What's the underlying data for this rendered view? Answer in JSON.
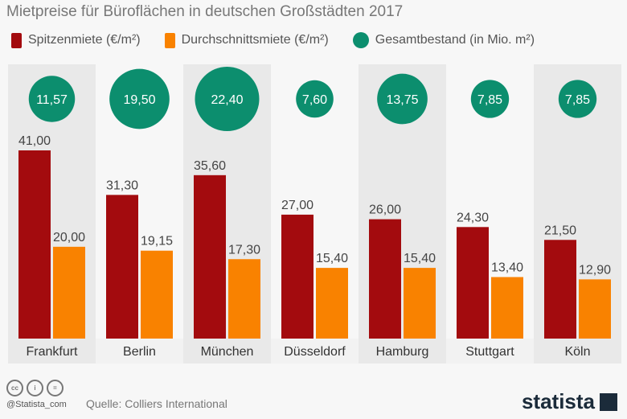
{
  "title": "Mietpreise für Büroflächen in deutschen Großstädten 2017",
  "legend": [
    {
      "label": "Spitzenmiete (€/m²)",
      "color": "#a30b0e"
    },
    {
      "label": "Durchschnittsmiete (€/m²)",
      "color": "#f98200"
    },
    {
      "label": "Gesamtbestand (in Mio. m²)",
      "color": "#0c8e6e"
    }
  ],
  "chart_data": {
    "type": "bar",
    "title": "Mietpreise für Büroflächen in deutschen Großstädten 2017",
    "categories": [
      "Frankfurt",
      "Berlin",
      "München",
      "Düsseldorf",
      "Hamburg",
      "Stuttgart",
      "Köln"
    ],
    "series": [
      {
        "name": "Spitzenmiete (€/m²)",
        "values": [
          41.0,
          31.3,
          35.6,
          27.0,
          26.0,
          24.3,
          21.5
        ],
        "labels": [
          "41,00",
          "31,30",
          "35,60",
          "27,00",
          "26,00",
          "24,30",
          "21,50"
        ]
      },
      {
        "name": "Durchschnittsmiete (€/m²)",
        "values": [
          20.0,
          19.15,
          17.3,
          15.4,
          15.4,
          13.4,
          12.9
        ],
        "labels": [
          "20,00",
          "19,15",
          "17,30",
          "15,40",
          "15,40",
          "13,40",
          "12,90"
        ]
      },
      {
        "name": "Gesamtbestand (in Mio. m²)",
        "values": [
          11.57,
          19.5,
          22.4,
          7.6,
          13.75,
          7.85,
          7.85
        ],
        "labels": [
          "11,57",
          "19,50",
          "22,40",
          "7,60",
          "13,75",
          "7,85",
          "7,85"
        ]
      }
    ],
    "ylim": [
      0,
      41
    ]
  },
  "footer": {
    "handle": "@Statista_com",
    "source": "Quelle: Colliers International",
    "logo": "statista",
    "cc_icons": [
      "cc",
      "i",
      "="
    ]
  }
}
